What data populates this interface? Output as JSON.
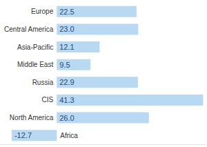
{
  "chart_data": {
    "type": "bar",
    "orientation": "horizontal",
    "categories": [
      "Europe",
      "Central America",
      "Asia-Pacific",
      "Middle East",
      "Russia",
      "CIS",
      "North America",
      "Africa"
    ],
    "values": [
      22.5,
      23.0,
      12.1,
      9.5,
      22.9,
      41.3,
      26.0,
      -12.7
    ],
    "value_labels": [
      "22.5",
      "23.0",
      "12.1",
      "9.5",
      "22.9",
      "41.3",
      "26.0",
      "-12.7"
    ],
    "color": "#b9d8f1",
    "xlim": [
      -16,
      42
    ],
    "data_labels": true,
    "tick_labels": "y",
    "grid": false
  }
}
